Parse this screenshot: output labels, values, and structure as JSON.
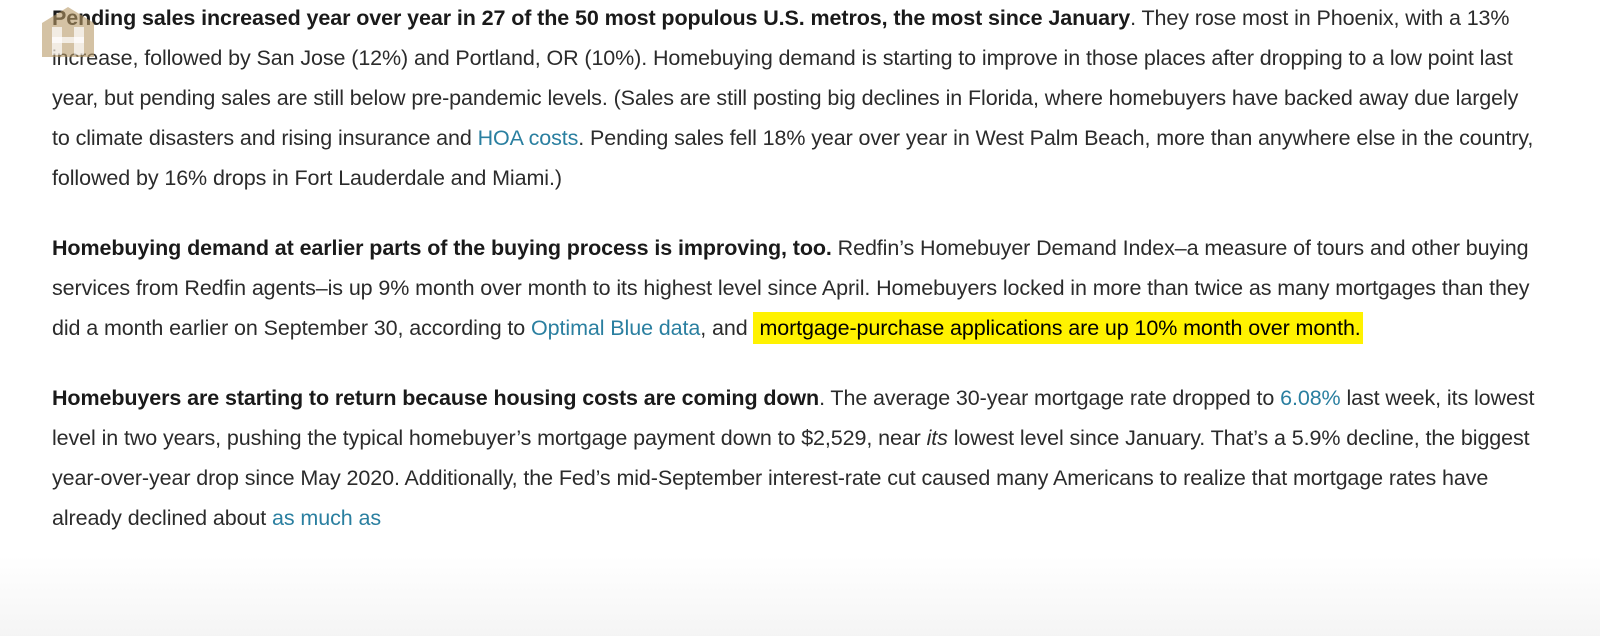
{
  "paragraphs": [
    [
      {
        "bold": "Pending sales increased year over year in 27 of the 50 most populous U.S. metros, the most since January"
      },
      {
        "text": ". They rose most in Phoenix, with a 13% increase, followed by San Jose (12%) and Portland, OR (10%). Homebuying demand is starting to improve in those places after dropping to a low point last year, but pending sales are still below pre-pandemic levels. (Sales are still posting big declines in Florida, where homebuyers have backed away due largely to climate disasters and rising insurance and "
      },
      {
        "link": "HOA costs"
      },
      {
        "text": ". Pending sales fell 18% year over year in West Palm Beach, more than anywhere else in the country, followed by 16% drops in Fort Lauderdale and Miami.)"
      }
    ],
    [
      {
        "bold": "Homebuying demand at earlier parts of the buying process is improving, too."
      },
      {
        "text": " Redfin’s Homebuyer Demand Index–a measure of tours and other buying services from Redfin agents–is up 9% month over month to its highest level since April. Homebuyers locked in more than twice as many mortgages than they did a month earlier on September 30, according to "
      },
      {
        "link": "Optimal Blue data"
      },
      {
        "text": ", and "
      },
      {
        "highlight": "mortgage-purchase applications are up 10% month over month."
      }
    ],
    [
      {
        "bold": "Homebuyers are starting to return because housing costs are coming down"
      },
      {
        "text": ". The average 30-year mortgage rate dropped to "
      },
      {
        "link": "6.08%"
      },
      {
        "text": " last week, its lowest level in two years, pushing the typical homebuyer’s mortgage payment down to $2,529, near "
      },
      {
        "italic": "its"
      },
      {
        "text": " lowest level since January. That’s a 5.9% decline, the biggest year-over-year drop since May 2020. Additionally, the Fed’s mid-September interest-rate cut caused many Americans to realize that mortgage rates have already declined about "
      },
      {
        "link": "as much as"
      }
    ]
  ]
}
